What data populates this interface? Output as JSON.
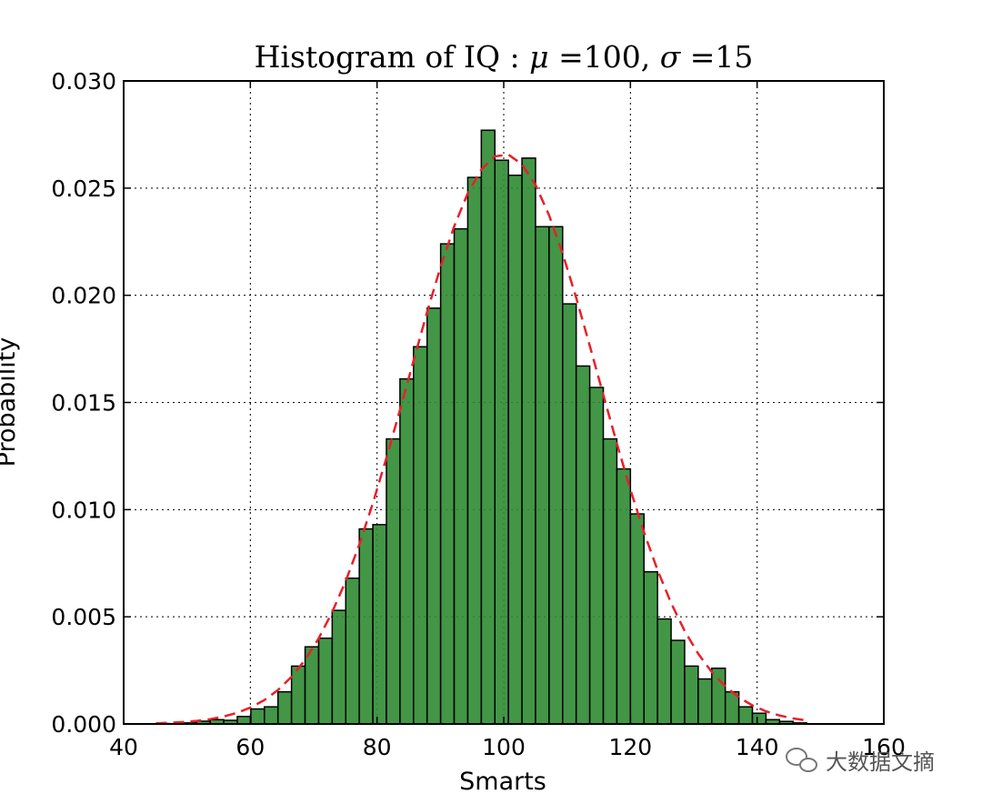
{
  "chart_data": {
    "type": "bar",
    "title": "Histogram of IQ : μ =100, σ =15",
    "title_parts": {
      "text": "Histogram of IQ : ",
      "mu": "μ",
      "eq1": " =100, ",
      "sigma": "σ",
      "eq2": " =15"
    },
    "xlabel": "Smarts",
    "ylabel": "Probability",
    "xlim": [
      40,
      160
    ],
    "ylim": [
      0,
      0.03
    ],
    "xticks": [
      "40",
      "60",
      "80",
      "100",
      "120",
      "140",
      "160"
    ],
    "yticks": [
      "0.000",
      "0.005",
      "0.010",
      "0.015",
      "0.020",
      "0.025",
      "0.030"
    ],
    "grid": true,
    "bar_color": "#2e8b32",
    "bar_edge_color": "#000000",
    "fit_line_color": "#e8202a",
    "bin_width": 2.14,
    "bin_start": 45.1,
    "values": [
      2e-05,
      0.0,
      5e-05,
      0.00013,
      0.0002,
      0.00017,
      0.00035,
      0.0007,
      0.0008,
      0.0015,
      0.0027,
      0.0036,
      0.004,
      0.0053,
      0.0068,
      0.0091,
      0.0093,
      0.0133,
      0.0161,
      0.0176,
      0.0194,
      0.0224,
      0.0231,
      0.0255,
      0.0277,
      0.0263,
      0.0256,
      0.0264,
      0.0232,
      0.0232,
      0.0196,
      0.0167,
      0.0157,
      0.0133,
      0.0119,
      0.0098,
      0.0071,
      0.0049,
      0.0039,
      0.0027,
      0.0021,
      0.0026,
      0.0015,
      0.0008,
      0.0005,
      0.0002,
      0.00012,
      5e-05
    ],
    "fit_curve": {
      "mu": 100,
      "sigma": 15
    }
  },
  "watermark": "大数据文摘"
}
